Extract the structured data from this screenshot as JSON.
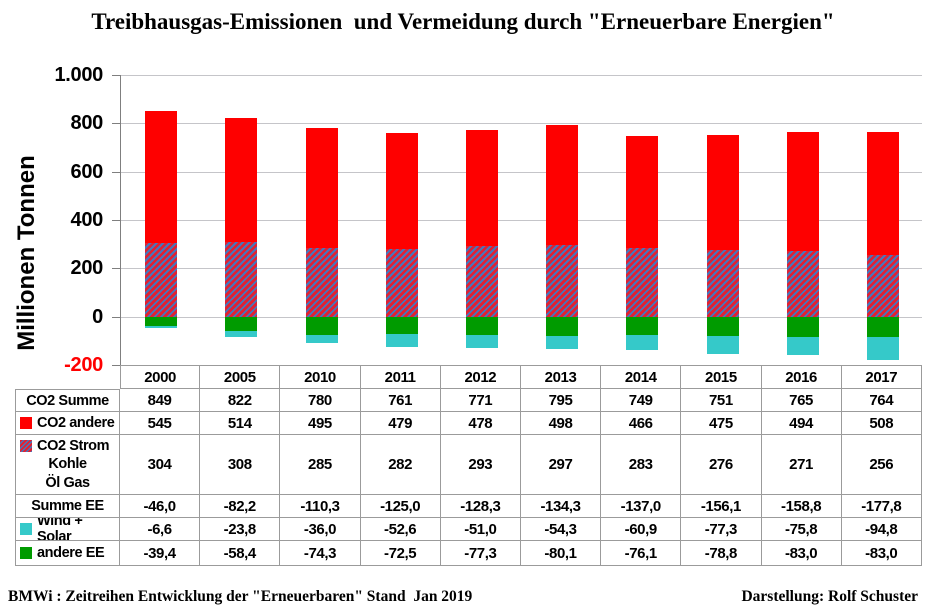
{
  "title": "Treibhausgas-Emissionen  und Vermeidung durch \"Erneuerbare Energien\"",
  "footer": {
    "left": "BMWi : Zeitreihen Entwicklung der \"Erneuerbaren\" Stand  Jan 2019",
    "right": "Darstellung: Rolf Schuster"
  },
  "colors": {
    "red": "#fe0000",
    "green": "#009b00",
    "cyan": "#35c9c9",
    "hatch_red": "#e32030",
    "hatch_blue": "#4477be",
    "grid": "#c5c5c9",
    "axis": "#7f7f7f",
    "table_border": "#9b9b9b",
    "negative_tick": "#ff0000"
  },
  "chart_data": {
    "type": "bar",
    "stacked": true,
    "title": "Treibhausgas-Emissionen  und Vermeidung durch \"Erneuerbare Energien\"",
    "ylabel": "Millionen Tonnen",
    "xlabel": "",
    "ylim": [
      -200,
      1000
    ],
    "ytick_step": 200,
    "ytick_labels": [
      "1.000",
      "800",
      "600",
      "400",
      "200",
      "0",
      "-200"
    ],
    "grid": true,
    "legend_position": "table-left-column",
    "categories": [
      "2000",
      "2005",
      "2010",
      "2011",
      "2012",
      "2013",
      "2014",
      "2015",
      "2016",
      "2017"
    ],
    "series": [
      {
        "name": "CO2 Strom Kohle Öl Gas",
        "fill": "hatch",
        "values": [
          304,
          308,
          285,
          282,
          293,
          297,
          283,
          276,
          271,
          256
        ]
      },
      {
        "name": "CO2 andere",
        "fill": "red",
        "values": [
          545,
          514,
          495,
          479,
          478,
          498,
          466,
          475,
          494,
          508
        ]
      },
      {
        "name": "andere EE",
        "fill": "green",
        "values": [
          -39.4,
          -58.4,
          -74.3,
          -72.5,
          -77.3,
          -80.1,
          -76.1,
          -78.8,
          -83.0,
          -83.0
        ]
      },
      {
        "name": "Wind + Solar",
        "fill": "cyan",
        "values": [
          -6.6,
          -23.8,
          -36.0,
          -52.6,
          -51.0,
          -54.3,
          -60.9,
          -77.3,
          -75.8,
          -94.8
        ]
      }
    ],
    "totals": {
      "co2_summe": [
        849,
        822,
        780,
        761,
        771,
        795,
        749,
        751,
        765,
        764
      ],
      "summe_ee": [
        -46.0,
        -82.2,
        -110.3,
        -125.0,
        -128.3,
        -134.3,
        -137.0,
        -156.1,
        -158.8,
        -177.8
      ]
    }
  },
  "table": {
    "year_header": [
      "2000",
      "2005",
      "2010",
      "2011",
      "2012",
      "2013",
      "2014",
      "2015",
      "2016",
      "2017"
    ],
    "rows": [
      {
        "label_lines": [
          "CO2 Summe"
        ],
        "swatch": null,
        "values": [
          "849",
          "822",
          "780",
          "761",
          "771",
          "795",
          "749",
          "751",
          "765",
          "764"
        ]
      },
      {
        "label_lines": [
          "CO2 andere"
        ],
        "swatch": "red",
        "values": [
          "545",
          "514",
          "495",
          "479",
          "478",
          "498",
          "466",
          "475",
          "494",
          "508"
        ]
      },
      {
        "label_lines": [
          "CO2 Strom",
          "Kohle",
          "Öl Gas"
        ],
        "swatch": "hatch",
        "values": [
          "304",
          "308",
          "285",
          "282",
          "293",
          "297",
          "283",
          "276",
          "271",
          "256"
        ]
      },
      {
        "label_lines": [
          "Summe EE"
        ],
        "swatch": null,
        "values": [
          "-46,0",
          "-82,2",
          "-110,3",
          "-125,0",
          "-128,3",
          "-134,3",
          "-137,0",
          "-156,1",
          "-158,8",
          "-177,8"
        ]
      },
      {
        "label_lines": [
          "Wind + Solar"
        ],
        "swatch": "cyan",
        "values": [
          "-6,6",
          "-23,8",
          "-36,0",
          "-52,6",
          "-51,0",
          "-54,3",
          "-60,9",
          "-77,3",
          "-75,8",
          "-94,8"
        ]
      },
      {
        "label_lines": [
          "andere EE"
        ],
        "swatch": "green",
        "values": [
          "-39,4",
          "-58,4",
          "-74,3",
          "-72,5",
          "-77,3",
          "-80,1",
          "-76,1",
          "-78,8",
          "-83,0",
          "-83,0"
        ]
      }
    ]
  }
}
